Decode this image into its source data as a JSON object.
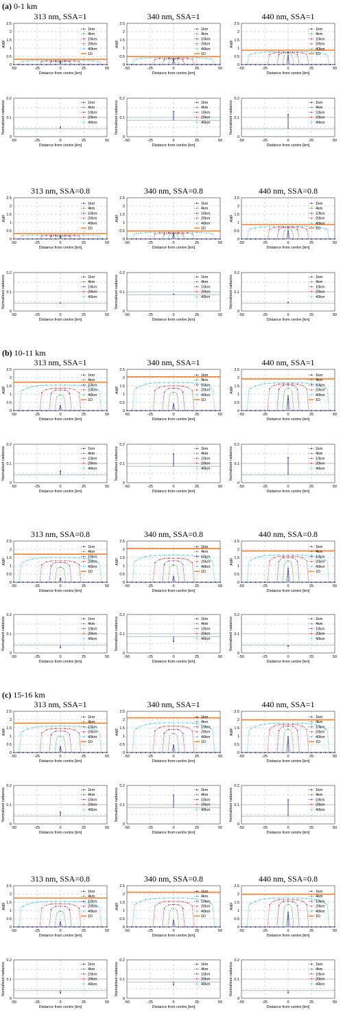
{
  "figure": {
    "sections": [
      {
        "label": "(a)",
        "title": "0-1 km"
      },
      {
        "label": "(b)",
        "title": "10-11 km"
      },
      {
        "label": "(c)",
        "title": "15-16 km"
      }
    ],
    "panel_titles": [
      "313 nm, SSA=1",
      "340 nm, SSA=1",
      "440 nm, SSA=1",
      "313 nm, SSA=0.8",
      "340 nm, SSA=0.8",
      "440 nm, SSA=0.8"
    ]
  },
  "legend": {
    "amf_entries": [
      "1km",
      "4km",
      "10km",
      "20km",
      "40km",
      "1D"
    ],
    "rad_entries": [
      "1km",
      "4km",
      "10km",
      "20km",
      "40km"
    ],
    "colors": {
      "1km": "#1a1a8c",
      "4km": "#2ca02c",
      "10km": "#8b1a6b",
      "20km": "#e03030",
      "40km": "#33c0e0",
      "1D": "#f07d2a"
    }
  },
  "axes": {
    "xlabel": "Distance from centre [km]",
    "amf_ylabel": "AMF",
    "rad_ylabel": "Normalised radiance",
    "x_ticks": [
      "-50",
      "-25",
      "0",
      "25",
      "50"
    ],
    "amf_ticks": [
      "0",
      "0.5",
      "1",
      "1.5",
      "2",
      "2.5"
    ],
    "rad_ticks": [
      "0",
      "0.1",
      "0.2"
    ]
  },
  "chart_data": [
    {
      "type": "line",
      "panel": "(a) 313 nm, SSA=1",
      "ylabel": "AMF",
      "ylim": [
        0,
        2.5
      ],
      "xlim": [
        -50,
        50
      ],
      "series": [
        {
          "name": "1km",
          "peak": 0.15
        },
        {
          "name": "4km",
          "peak": 0.18
        },
        {
          "name": "10km",
          "peak": 0.2
        },
        {
          "name": "20km",
          "peak": 0.22
        },
        {
          "name": "40km",
          "peak": 0.25
        },
        {
          "name": "1D",
          "value": 0.32
        }
      ]
    },
    {
      "type": "line",
      "panel": "(a) 340 nm, SSA=1",
      "ylabel": "AMF",
      "ylim": [
        0,
        2.5
      ],
      "xlim": [
        -50,
        50
      ],
      "series": [
        {
          "name": "1km",
          "peak": 0.28
        },
        {
          "name": "4km",
          "peak": 0.32
        },
        {
          "name": "10km",
          "peak": 0.35
        },
        {
          "name": "20km",
          "peak": 0.38
        },
        {
          "name": "40km",
          "peak": 0.42
        },
        {
          "name": "1D",
          "value": 0.48
        }
      ]
    },
    {
      "type": "line",
      "panel": "(a) 440 nm, SSA=1",
      "ylabel": "AMF",
      "ylim": [
        0,
        2.5
      ],
      "xlim": [
        -50,
        50
      ],
      "series": [
        {
          "name": "1km",
          "peak": 0.55
        },
        {
          "name": "4km",
          "peak": 0.65
        },
        {
          "name": "10km",
          "peak": 0.72
        },
        {
          "name": "20km",
          "peak": 0.75
        },
        {
          "name": "40km",
          "peak": 0.78
        },
        {
          "name": "1D",
          "value": 0.87
        }
      ]
    },
    {
      "type": "line",
      "panel": "(a) 313 nm, SSA=1",
      "ylabel": "Normalised radiance",
      "ylim": [
        0,
        0.2
      ],
      "xlim": [
        -50,
        50
      ],
      "series": [
        {
          "name": "baseline",
          "value": 0.04
        },
        {
          "name": "1km",
          "peak": 0.05
        }
      ]
    },
    {
      "type": "line",
      "panel": "(a) 340 nm, SSA=1",
      "ylabel": "Normalised radiance",
      "ylim": [
        0,
        0.2
      ],
      "xlim": [
        -50,
        50
      ],
      "series": [
        {
          "name": "baseline",
          "value": 0.085
        },
        {
          "name": "1km",
          "peak": 0.13
        }
      ]
    },
    {
      "type": "line",
      "panel": "(a) 440 nm, SSA=1",
      "ylabel": "Normalised radiance",
      "ylim": [
        0,
        0.2
      ],
      "xlim": [
        -50,
        50
      ],
      "series": [
        {
          "name": "baseline",
          "value": 0.04
        },
        {
          "name": "1km",
          "peak": 0.115
        }
      ]
    },
    {
      "type": "line",
      "panel": "(b) 313 nm, SSA=1",
      "ylabel": "AMF",
      "ylim": [
        0,
        2.5
      ],
      "xlim": [
        -50,
        50
      ],
      "series": [
        {
          "name": "1km",
          "peak": 0.3
        },
        {
          "name": "4km",
          "peak": 0.95
        },
        {
          "name": "10km",
          "peak": 1.25
        },
        {
          "name": "20km",
          "peak": 1.35
        },
        {
          "name": "40km",
          "peak": 1.55
        },
        {
          "name": "1D",
          "value": 1.72
        }
      ]
    },
    {
      "type": "line",
      "panel": "(b) 340 nm, SSA=1",
      "ylabel": "AMF",
      "ylim": [
        0,
        2.5
      ],
      "xlim": [
        -50,
        50
      ],
      "series": [
        {
          "name": "1km",
          "peak": 0.4
        },
        {
          "name": "4km",
          "peak": 1.1
        },
        {
          "name": "10km",
          "peak": 1.35
        },
        {
          "name": "20km",
          "peak": 1.5
        },
        {
          "name": "40km",
          "peak": 1.7
        },
        {
          "name": "1D",
          "value": 2.05
        }
      ]
    },
    {
      "type": "line",
      "panel": "(b) 440 nm, SSA=1",
      "ylabel": "AMF",
      "ylim": [
        0,
        2.5
      ],
      "xlim": [
        -50,
        50
      ],
      "series": [
        {
          "name": "1km",
          "peak": 0.9
        },
        {
          "name": "4km",
          "peak": 1.35
        },
        {
          "name": "10km",
          "peak": 1.55
        },
        {
          "name": "20km",
          "peak": 1.62
        },
        {
          "name": "40km",
          "peak": 1.68
        },
        {
          "name": "1D",
          "value": 1.92
        }
      ]
    }
  ]
}
